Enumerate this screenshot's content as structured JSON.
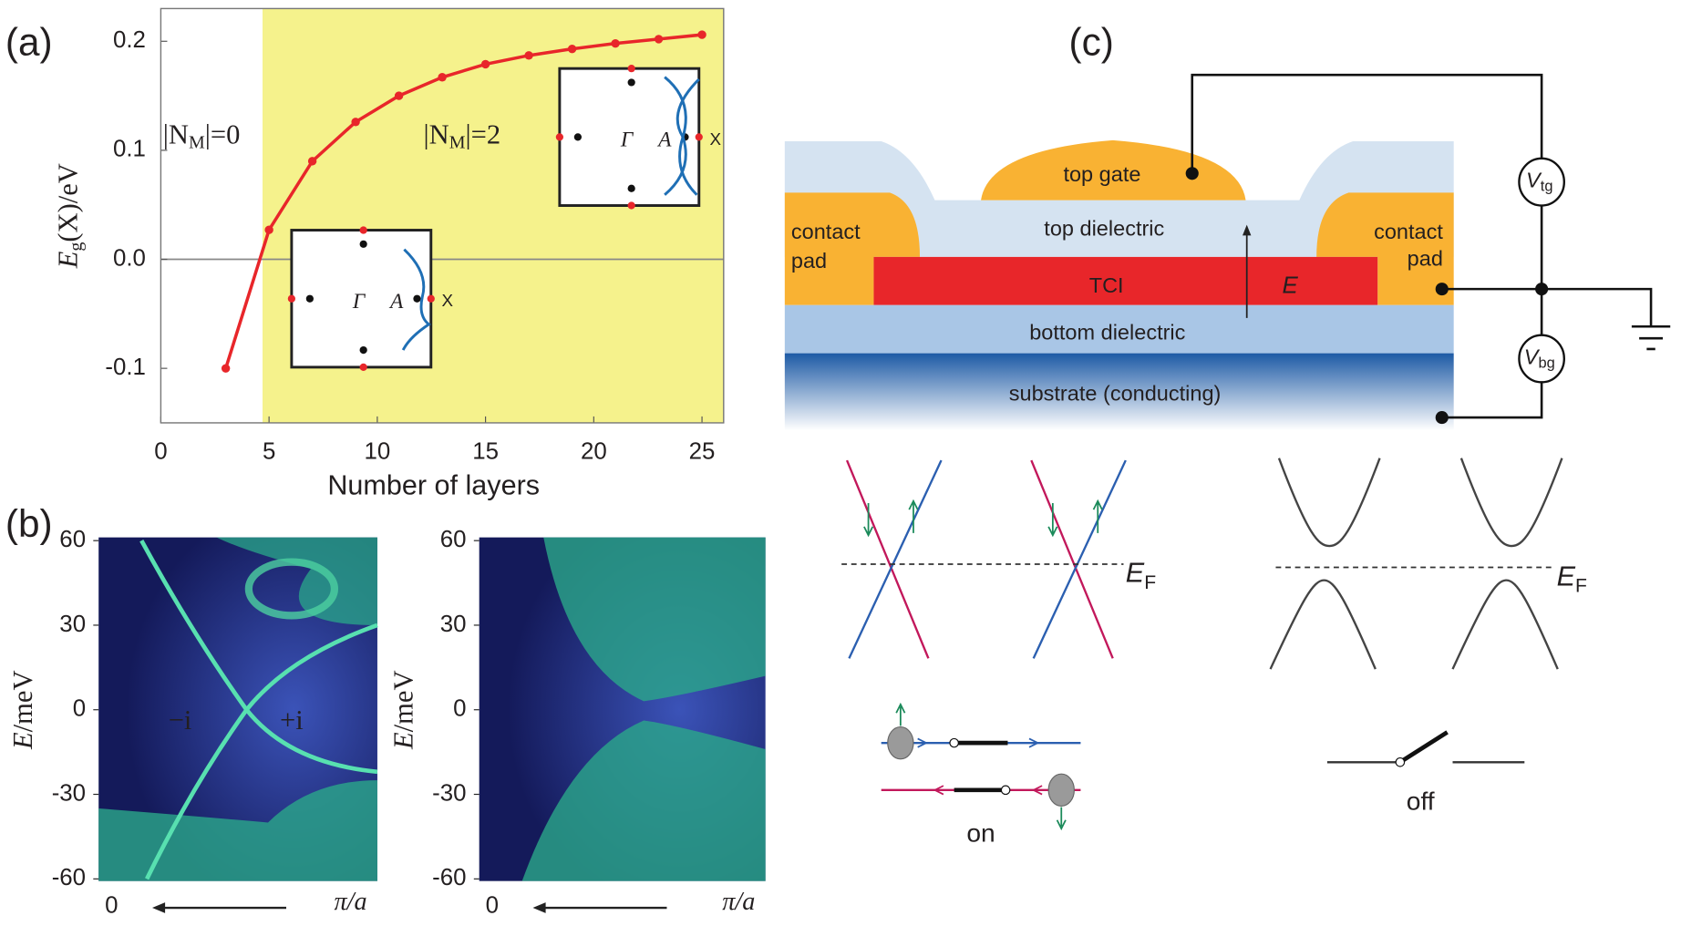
{
  "panel_labels": [
    "(a)",
    "(b)",
    "(c)"
  ],
  "chart_data": [
    {
      "type": "line",
      "xlabel": "Number of layers",
      "ylabel": [
        "E",
        "g",
        "(X)/eV"
      ],
      "x": [
        3,
        5,
        7,
        9,
        11,
        13,
        15,
        17,
        19,
        21,
        23,
        25
      ],
      "values": [
        -0.1,
        0.027,
        0.09,
        0.126,
        0.15,
        0.167,
        0.179,
        0.187,
        0.193,
        0.198,
        0.202,
        0.206
      ],
      "color": "#e8262a",
      "xlim": [
        0,
        26
      ],
      "ylim": [
        -0.15,
        0.23
      ],
      "xticks": [
        0,
        5,
        10,
        15,
        20,
        25
      ],
      "yticks": [
        -0.1,
        {
          "value": 0,
          "label": "0.0"
        },
        0.1,
        0.2
      ],
      "shade": {
        "from": 4.7,
        "color": "#f5f28c"
      },
      "annotations": [
        [
          "|N",
          "M",
          "|=0"
        ],
        [
          "|N",
          "M",
          "|=2"
        ]
      ],
      "insets": [
        [
          "Γ",
          "A",
          "X"
        ],
        [
          "Γ",
          "A",
          "X"
        ]
      ]
    },
    {
      "type": "heatmap",
      "ylabel": [
        "E",
        "/meV"
      ],
      "ylim": [
        -60,
        60
      ],
      "yticks": [
        -60,
        -30,
        0,
        30,
        60
      ],
      "x_labels": [
        "0",
        "π/a"
      ],
      "annotations": [
        "−i",
        "+i"
      ]
    },
    {
      "type": "heatmap",
      "ylabel": [
        "E",
        "/meV"
      ],
      "ylim": [
        -60,
        60
      ],
      "yticks": [
        -60,
        -30,
        0,
        30,
        60
      ],
      "x_labels": [
        "0",
        "π/a"
      ]
    }
  ],
  "device": {
    "top_gate": "top gate",
    "top_dielectric": "top dielectric",
    "contact_pad_left": [
      "contact",
      "pad"
    ],
    "contact_pad_right": [
      "contact",
      "pad"
    ],
    "tci": "TCI",
    "field": "E",
    "bottom_dielectric": "bottom dielectric",
    "substrate": "substrate (conducting)",
    "v_tg": [
      "V",
      "tg"
    ],
    "v_bg": [
      "V",
      "bg"
    ]
  },
  "bands": {
    "on_fermi": [
      "E",
      "F"
    ],
    "off_fermi": [
      "E",
      "F"
    ],
    "on": "on",
    "off": "off"
  }
}
